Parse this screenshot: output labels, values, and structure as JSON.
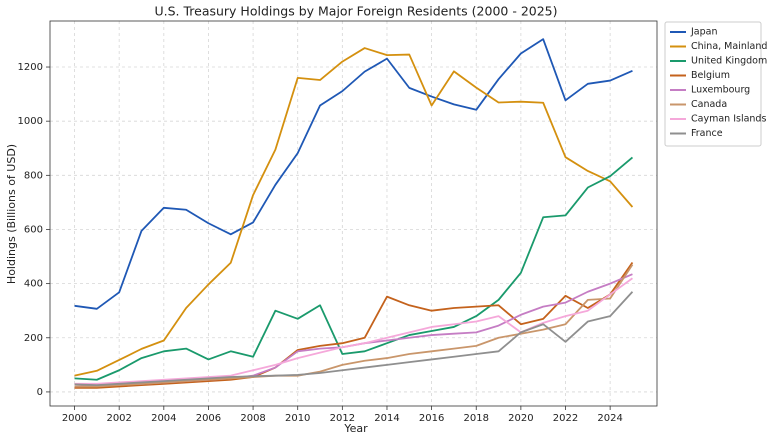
{
  "chart_data": {
    "type": "line",
    "title": "U.S. Treasury Holdings by Major Foreign Residents (2000 - 2025)",
    "x_label": "Year",
    "y_label": "Holdings (Billions of USD)",
    "x": [
      2000,
      2001,
      2002,
      2003,
      2004,
      2005,
      2006,
      2007,
      2008,
      2009,
      2010,
      2011,
      2012,
      2013,
      2014,
      2015,
      2016,
      2017,
      2018,
      2019,
      2020,
      2021,
      2022,
      2023,
      2024,
      2025
    ],
    "xlim": [
      1998.9,
      2026.1
    ],
    "xticks": [
      2000,
      2002,
      2004,
      2006,
      2008,
      2010,
      2012,
      2014,
      2016,
      2018,
      2020,
      2022,
      2024
    ],
    "ylim": [
      -52,
      1370
    ],
    "yticks": [
      0,
      200,
      400,
      600,
      800,
      1000,
      1200
    ],
    "grid": true,
    "legend": "outside upper right",
    "series": [
      {
        "name": "Japan",
        "color": "#1f58b5",
        "values": [
          318,
          307,
          368,
          595,
          680,
          673,
          623,
          582,
          626,
          765,
          882,
          1058,
          1111,
          1183,
          1231,
          1123,
          1091,
          1062,
          1042,
          1155,
          1250,
          1303,
          1077,
          1138,
          1150,
          1186
        ]
      },
      {
        "name": "China, Mainland",
        "color": "#d4900f",
        "values": [
          60,
          78,
          118,
          159,
          190,
          310,
          397,
          477,
          727,
          895,
          1160,
          1152,
          1220,
          1270,
          1244,
          1246,
          1058,
          1184,
          1124,
          1069,
          1072,
          1068,
          867,
          816,
          778,
          683
        ]
      },
      {
        "name": "United Kingdom",
        "color": "#1a9a6c",
        "values": [
          50,
          45,
          80,
          125,
          150,
          160,
          120,
          150,
          130,
          300,
          270,
          320,
          140,
          150,
          180,
          210,
          225,
          240,
          280,
          340,
          440,
          645,
          652,
          755,
          797,
          866
        ]
      },
      {
        "name": "Belgium",
        "color": "#c4621c",
        "values": [
          15,
          15,
          20,
          25,
          30,
          35,
          40,
          45,
          55,
          90,
          155,
          170,
          180,
          200,
          352,
          320,
          300,
          310,
          315,
          320,
          250,
          270,
          355,
          310,
          360,
          478
        ]
      },
      {
        "name": "Luxembourg",
        "color": "#c57dc4",
        "values": [
          20,
          22,
          27,
          30,
          35,
          40,
          45,
          50,
          60,
          90,
          150,
          160,
          165,
          180,
          190,
          200,
          210,
          215,
          220,
          245,
          285,
          315,
          330,
          370,
          400,
          435
        ]
      },
      {
        "name": "Canada",
        "color": "#c9966b",
        "values": [
          20,
          20,
          25,
          30,
          35,
          40,
          45,
          50,
          55,
          60,
          60,
          75,
          100,
          115,
          125,
          140,
          150,
          160,
          170,
          200,
          215,
          230,
          250,
          340,
          345,
          470
        ]
      },
      {
        "name": "Cayman Islands",
        "color": "#f5a8da",
        "values": [
          30,
          30,
          35,
          40,
          45,
          50,
          55,
          60,
          80,
          100,
          125,
          145,
          165,
          180,
          200,
          220,
          240,
          250,
          260,
          280,
          220,
          255,
          280,
          300,
          360,
          420
        ]
      },
      {
        "name": "France",
        "color": "#8f8f8f",
        "values": [
          28,
          25,
          30,
          35,
          40,
          45,
          50,
          55,
          58,
          60,
          63,
          70,
          80,
          90,
          100,
          110,
          120,
          130,
          140,
          150,
          220,
          250,
          185,
          260,
          280,
          370
        ]
      }
    ]
  }
}
